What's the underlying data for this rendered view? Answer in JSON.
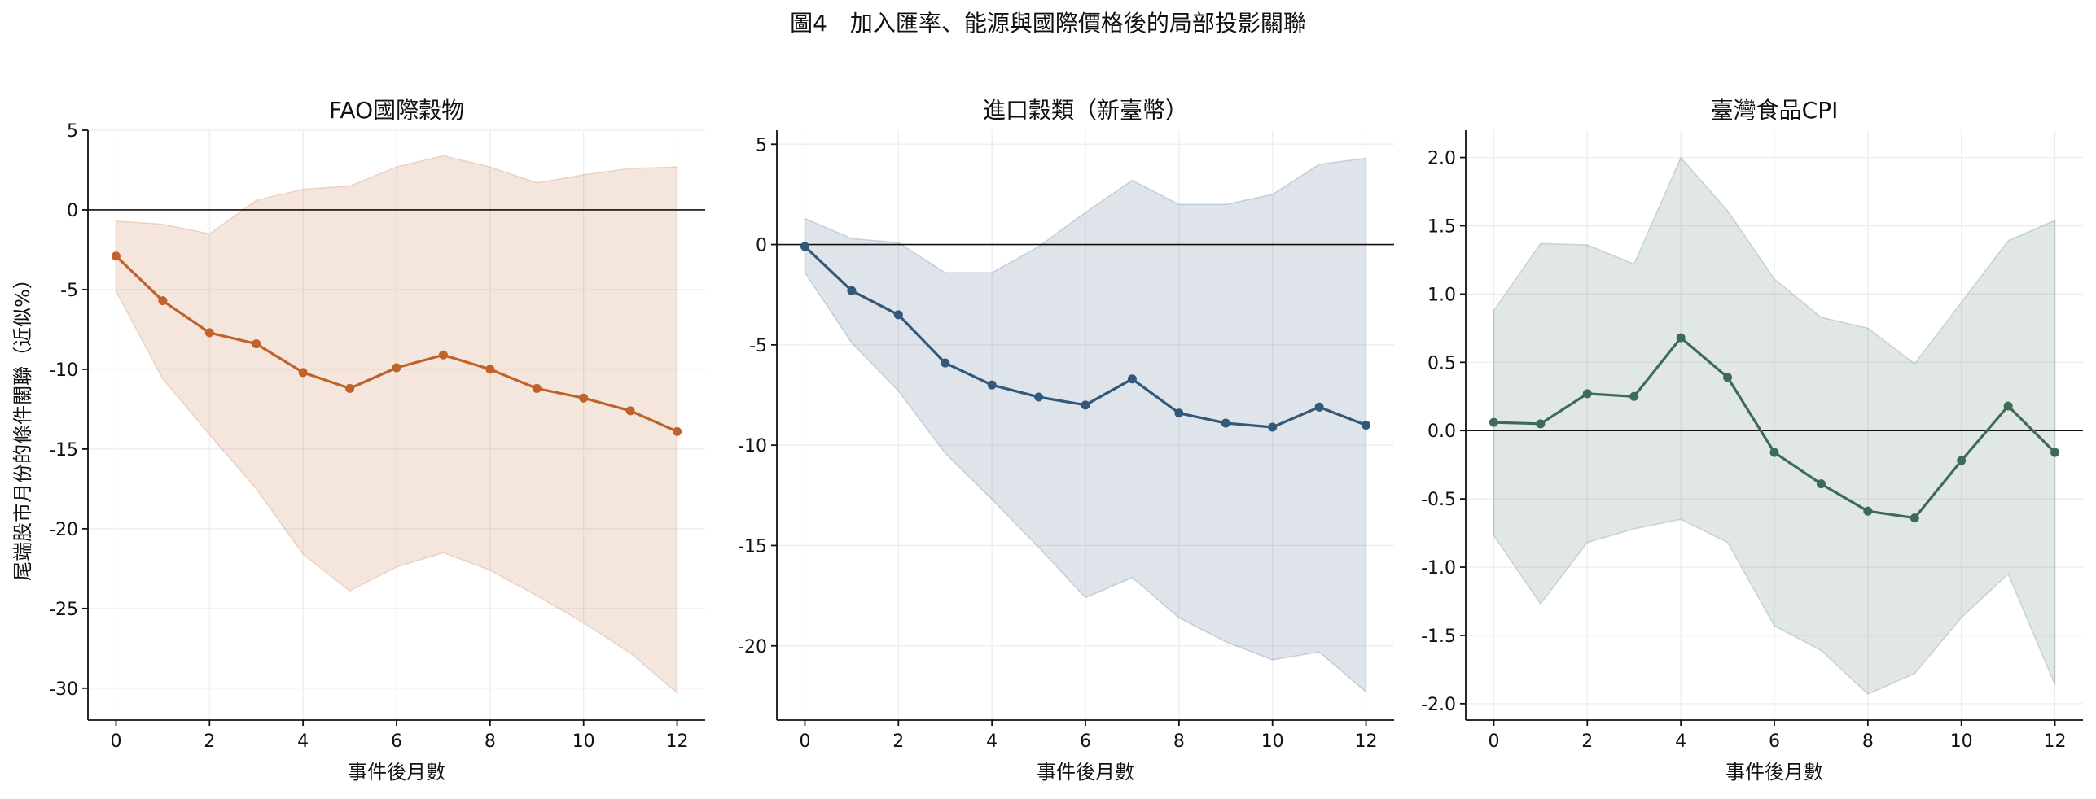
{
  "suptitle": "圖4　加入匯率、能源與國際價格後的局部投影關聯",
  "chart_data": [
    {
      "type": "line",
      "title": "FAO國際穀物",
      "xlabel": "事件後月數",
      "ylabel": "尾端股市月份的條件關聯（近似%）",
      "color": "#c0632a",
      "x": [
        0,
        1,
        2,
        3,
        4,
        5,
        6,
        7,
        8,
        9,
        10,
        11,
        12
      ],
      "series": [
        {
          "values": [
            -2.9,
            -5.7,
            -7.7,
            -8.4,
            -10.2,
            -11.2,
            -9.9,
            -9.1,
            -10.0,
            -11.2,
            -11.8,
            -12.6,
            -13.9
          ]
        }
      ],
      "upper": [
        -0.7,
        -0.9,
        -1.5,
        0.6,
        1.3,
        1.5,
        2.7,
        3.4,
        2.7,
        1.7,
        2.2,
        2.6,
        2.7
      ],
      "lower": [
        -5.1,
        -10.6,
        -14.1,
        -17.5,
        -21.6,
        -23.9,
        -22.4,
        -21.5,
        -22.6,
        -24.2,
        -25.9,
        -27.8,
        -30.3
      ],
      "ylim": [
        -32.0,
        5.0
      ],
      "yticks": [
        5,
        0,
        -5,
        -10,
        -15,
        -20,
        -25,
        -30
      ],
      "ytick_labels": [
        "5",
        "0",
        "-5",
        "-10",
        "-15",
        "-20",
        "-25",
        "-30"
      ],
      "xticks": [
        0,
        2,
        4,
        6,
        8,
        10,
        12
      ],
      "xlim": [
        -0.6,
        12.6
      ],
      "grid": true
    },
    {
      "type": "line",
      "title": "進口穀類（新臺幣）",
      "xlabel": "事件後月數",
      "color": "#33587a",
      "x": [
        0,
        1,
        2,
        3,
        4,
        5,
        6,
        7,
        8,
        9,
        10,
        11,
        12
      ],
      "series": [
        {
          "values": [
            -0.1,
            -2.3,
            -3.5,
            -5.9,
            -7.0,
            -7.6,
            -8.0,
            -6.7,
            -8.4,
            -8.9,
            -9.1,
            -8.1,
            -9.0
          ]
        }
      ],
      "upper": [
        1.3,
        0.3,
        0.1,
        -1.4,
        -1.4,
        -0.1,
        1.6,
        3.2,
        2.0,
        2.0,
        2.5,
        4.0,
        4.3
      ],
      "lower": [
        -1.4,
        -4.9,
        -7.3,
        -10.4,
        -12.7,
        -15.1,
        -17.6,
        -16.6,
        -18.6,
        -19.8,
        -20.7,
        -20.3,
        -22.3
      ],
      "ylim": [
        -23.7,
        5.7
      ],
      "yticks": [
        5,
        0,
        -5,
        -10,
        -15,
        -20
      ],
      "ytick_labels": [
        "5",
        "0",
        "-5",
        "-10",
        "-15",
        "-20"
      ],
      "xticks": [
        0,
        2,
        4,
        6,
        8,
        10,
        12
      ],
      "xlim": [
        -0.6,
        12.6
      ],
      "grid": true
    },
    {
      "type": "line",
      "title": "臺灣食品CPI",
      "xlabel": "事件後月數",
      "color": "#3e6b56",
      "x": [
        0,
        1,
        2,
        3,
        4,
        5,
        6,
        7,
        8,
        9,
        10,
        11,
        12
      ],
      "series": [
        {
          "values": [
            0.06,
            0.05,
            0.27,
            0.25,
            0.68,
            0.39,
            -0.16,
            -0.39,
            -0.59,
            -0.64,
            -0.22,
            0.18,
            -0.16
          ]
        }
      ],
      "upper": [
        0.88,
        1.37,
        1.36,
        1.22,
        2.0,
        1.61,
        1.11,
        0.83,
        0.75,
        0.49,
        0.94,
        1.39,
        1.54
      ],
      "lower": [
        -0.77,
        -1.27,
        -0.82,
        -0.72,
        -0.65,
        -0.82,
        -1.43,
        -1.61,
        -1.93,
        -1.78,
        -1.37,
        -1.05,
        -1.86
      ],
      "ylim": [
        -2.12,
        2.2
      ],
      "yticks": [
        2.0,
        1.5,
        1.0,
        0.5,
        0.0,
        -0.5,
        -1.0,
        -1.5,
        -2.0
      ],
      "ytick_labels": [
        "2.0",
        "1.5",
        "1.0",
        "0.5",
        "0.0",
        "-0.5",
        "-1.0",
        "-1.5",
        "-2.0"
      ],
      "xticks": [
        0,
        2,
        4,
        6,
        8,
        10,
        12
      ],
      "xlim": [
        -0.6,
        12.6
      ],
      "grid": true
    }
  ]
}
